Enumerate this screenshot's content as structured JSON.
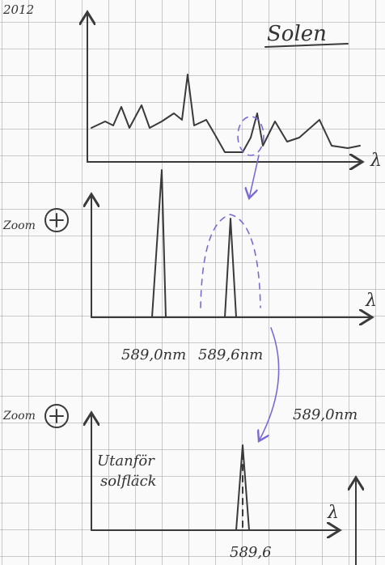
{
  "header": {
    "year": "2012",
    "title": "Solen"
  },
  "panels": [
    {
      "axis_label": "λ"
    },
    {
      "zoom_label": "Zoom",
      "axis_label": "λ",
      "peak_labels": [
        "589,0nm",
        "589,6nm"
      ]
    },
    {
      "zoom_label": "Zoom",
      "side_label": "589,0nm",
      "annotation": [
        "Utanför",
        "solfläck"
      ],
      "axis_label": "λ",
      "peak_label": "589,6"
    }
  ]
}
